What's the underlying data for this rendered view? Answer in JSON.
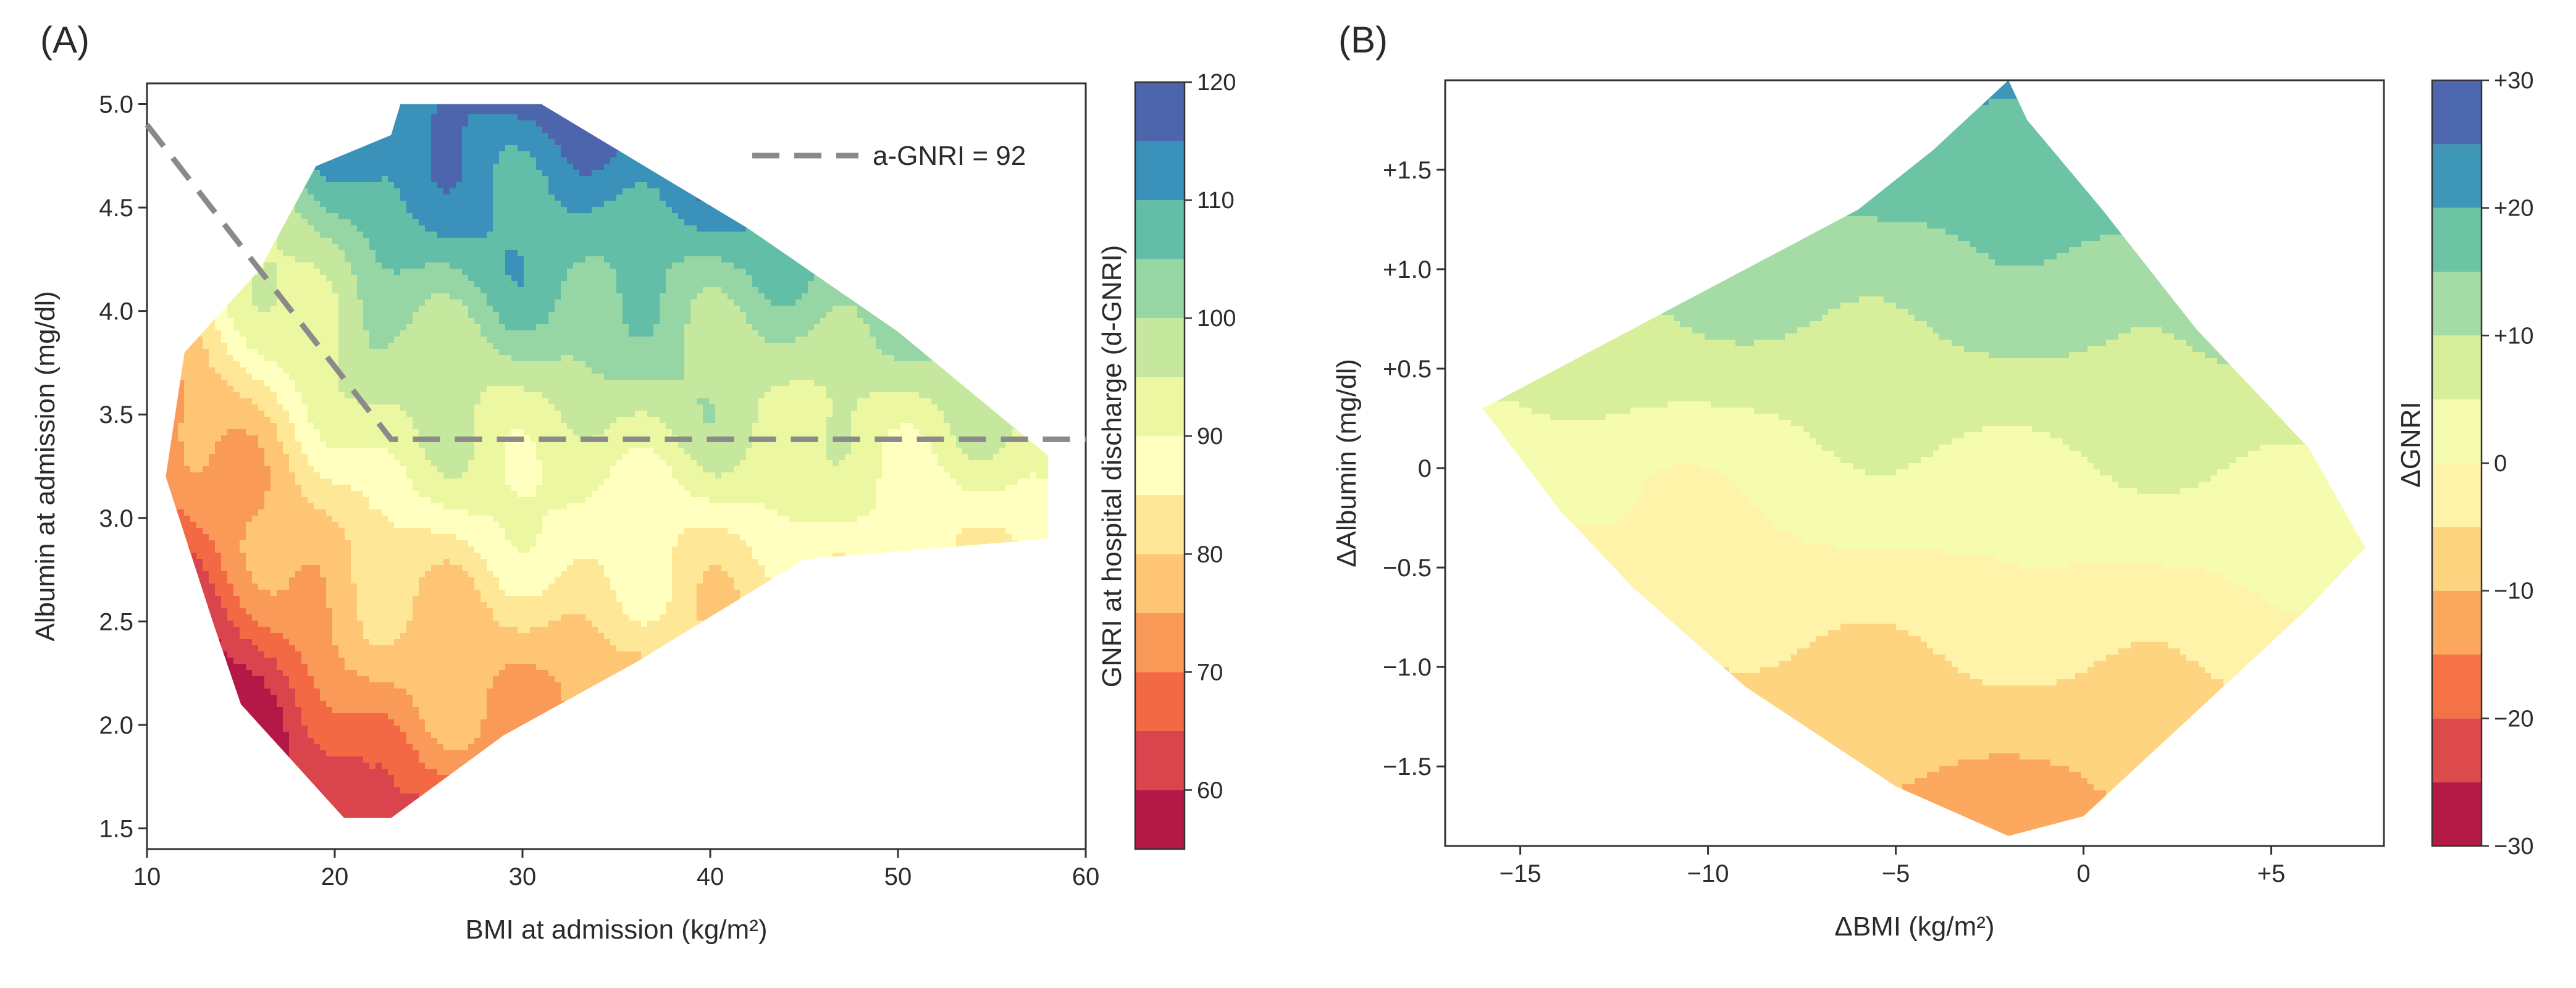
{
  "chart_data": [
    {
      "type": "heatmap",
      "panel_label": "(A)",
      "xlabel": "BMI at admission (kg/m²)",
      "ylabel": "Albumin at admission (mg/dl)",
      "xlim": [
        10,
        60
      ],
      "ylim": [
        1.4,
        5.1
      ],
      "xticks": [
        10,
        20,
        30,
        40,
        50,
        60
      ],
      "xtick_labels": [
        "10",
        "20",
        "30",
        "40",
        "50",
        "60"
      ],
      "yticks": [
        1.5,
        2.0,
        2.5,
        3.0,
        3.5,
        4.0,
        4.5,
        5.0
      ],
      "ytick_labels": [
        "1.5",
        "2.0",
        "2.5",
        "3.0",
        "3.5",
        "4.0",
        "4.5",
        "5.0"
      ],
      "colorbar": {
        "label": "GNRI at hospital discharge (d-GNRI)",
        "range": [
          55,
          120
        ],
        "levels": [
          55,
          60,
          65,
          70,
          75,
          80,
          85,
          90,
          95,
          100,
          105,
          110,
          115,
          120
        ],
        "tick_values": [
          60,
          70,
          80,
          90,
          100,
          110,
          120
        ],
        "tick_labels": [
          "60",
          "70",
          "80",
          "90",
          "100",
          "110",
          "120"
        ]
      },
      "region_polygon": [
        [
          23.5,
          5.0
        ],
        [
          31,
          5.0
        ],
        [
          42,
          4.4
        ],
        [
          50,
          3.9
        ],
        [
          58,
          3.3
        ],
        [
          58,
          2.9
        ],
        [
          45,
          2.8
        ],
        [
          36,
          2.3
        ],
        [
          29,
          1.95
        ],
        [
          23,
          1.55
        ],
        [
          20.5,
          1.55
        ],
        [
          15,
          2.1
        ],
        [
          13.5,
          2.5
        ],
        [
          11,
          3.2
        ],
        [
          12,
          3.8
        ],
        [
          16,
          4.2
        ],
        [
          19,
          4.7
        ],
        [
          23,
          4.85
        ]
      ],
      "annotation": {
        "label": "a-GNRI = 92",
        "line": [
          [
            10,
            4.9
          ],
          [
            23,
            3.38
          ],
          [
            60,
            3.38
          ]
        ],
        "style": "dashed gray"
      }
    },
    {
      "type": "heatmap",
      "panel_label": "(B)",
      "xlabel": "ΔBMI (kg/m²)",
      "ylabel": "ΔAlbumin (mg/dl)",
      "xlim": [
        -17,
        8
      ],
      "ylim": [
        -1.9,
        1.95
      ],
      "xticks": [
        -15,
        -10,
        -5,
        0,
        5
      ],
      "xtick_labels": [
        "−15",
        "−10",
        "−5",
        "0",
        "+5"
      ],
      "yticks": [
        -1.5,
        -1.0,
        -0.5,
        0,
        0.5,
        1.0,
        1.5
      ],
      "ytick_labels": [
        "−1.5",
        "−1.0",
        "−0.5",
        "0",
        "+0.5",
        "+1.0",
        "+1.5"
      ],
      "colorbar": {
        "label": "ΔGNRI",
        "range": [
          -30,
          30
        ],
        "levels": [
          -30,
          -25,
          -20,
          -15,
          -10,
          -5,
          0,
          5,
          10,
          15,
          20,
          25,
          30
        ],
        "tick_values": [
          -30,
          -20,
          -10,
          0,
          10,
          20,
          30
        ],
        "tick_labels": [
          "−30",
          "−20",
          "−10",
          "0",
          "+10",
          "+20",
          "+30"
        ]
      },
      "region_polygon": [
        [
          -2,
          1.95
        ],
        [
          -1.5,
          1.75
        ],
        [
          0.5,
          1.3
        ],
        [
          3,
          0.7
        ],
        [
          6,
          0.1
        ],
        [
          7.5,
          -0.4
        ],
        [
          6,
          -0.7
        ],
        [
          2,
          -1.4
        ],
        [
          0,
          -1.75
        ],
        [
          -2,
          -1.85
        ],
        [
          -5,
          -1.6
        ],
        [
          -9,
          -1.1
        ],
        [
          -12,
          -0.6
        ],
        [
          -14,
          -0.2
        ],
        [
          -16,
          0.3
        ],
        [
          -10,
          0.9
        ],
        [
          -6,
          1.3
        ],
        [
          -4,
          1.6
        ]
      ]
    }
  ]
}
